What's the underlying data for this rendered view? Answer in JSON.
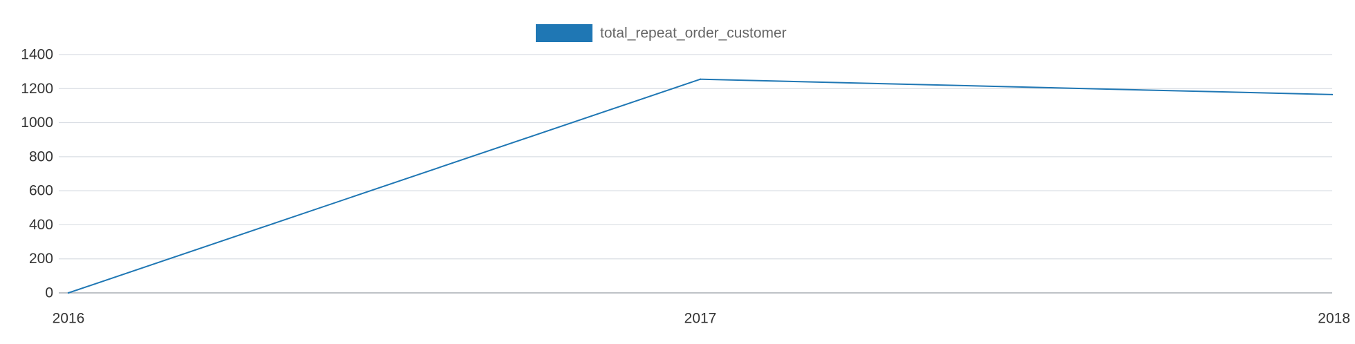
{
  "chart_data": {
    "type": "line",
    "x": [
      "2016",
      "2017",
      "2018"
    ],
    "series": [
      {
        "name": "total_repeat_order_customer",
        "values": [
          0,
          1255,
          1165
        ],
        "color": "#1f77b4"
      }
    ],
    "ylim": [
      0,
      1400
    ],
    "yticks": [
      0,
      200,
      400,
      600,
      800,
      1000,
      1200,
      1400
    ],
    "grid": true,
    "legend": "top-center",
    "title": "",
    "xlabel": "",
    "ylabel": ""
  },
  "colors": {
    "series": "#1f77b4",
    "grid": "#d9dde3",
    "axis": "#a9adb3",
    "text": "#333333",
    "legend_text": "#666666"
  }
}
